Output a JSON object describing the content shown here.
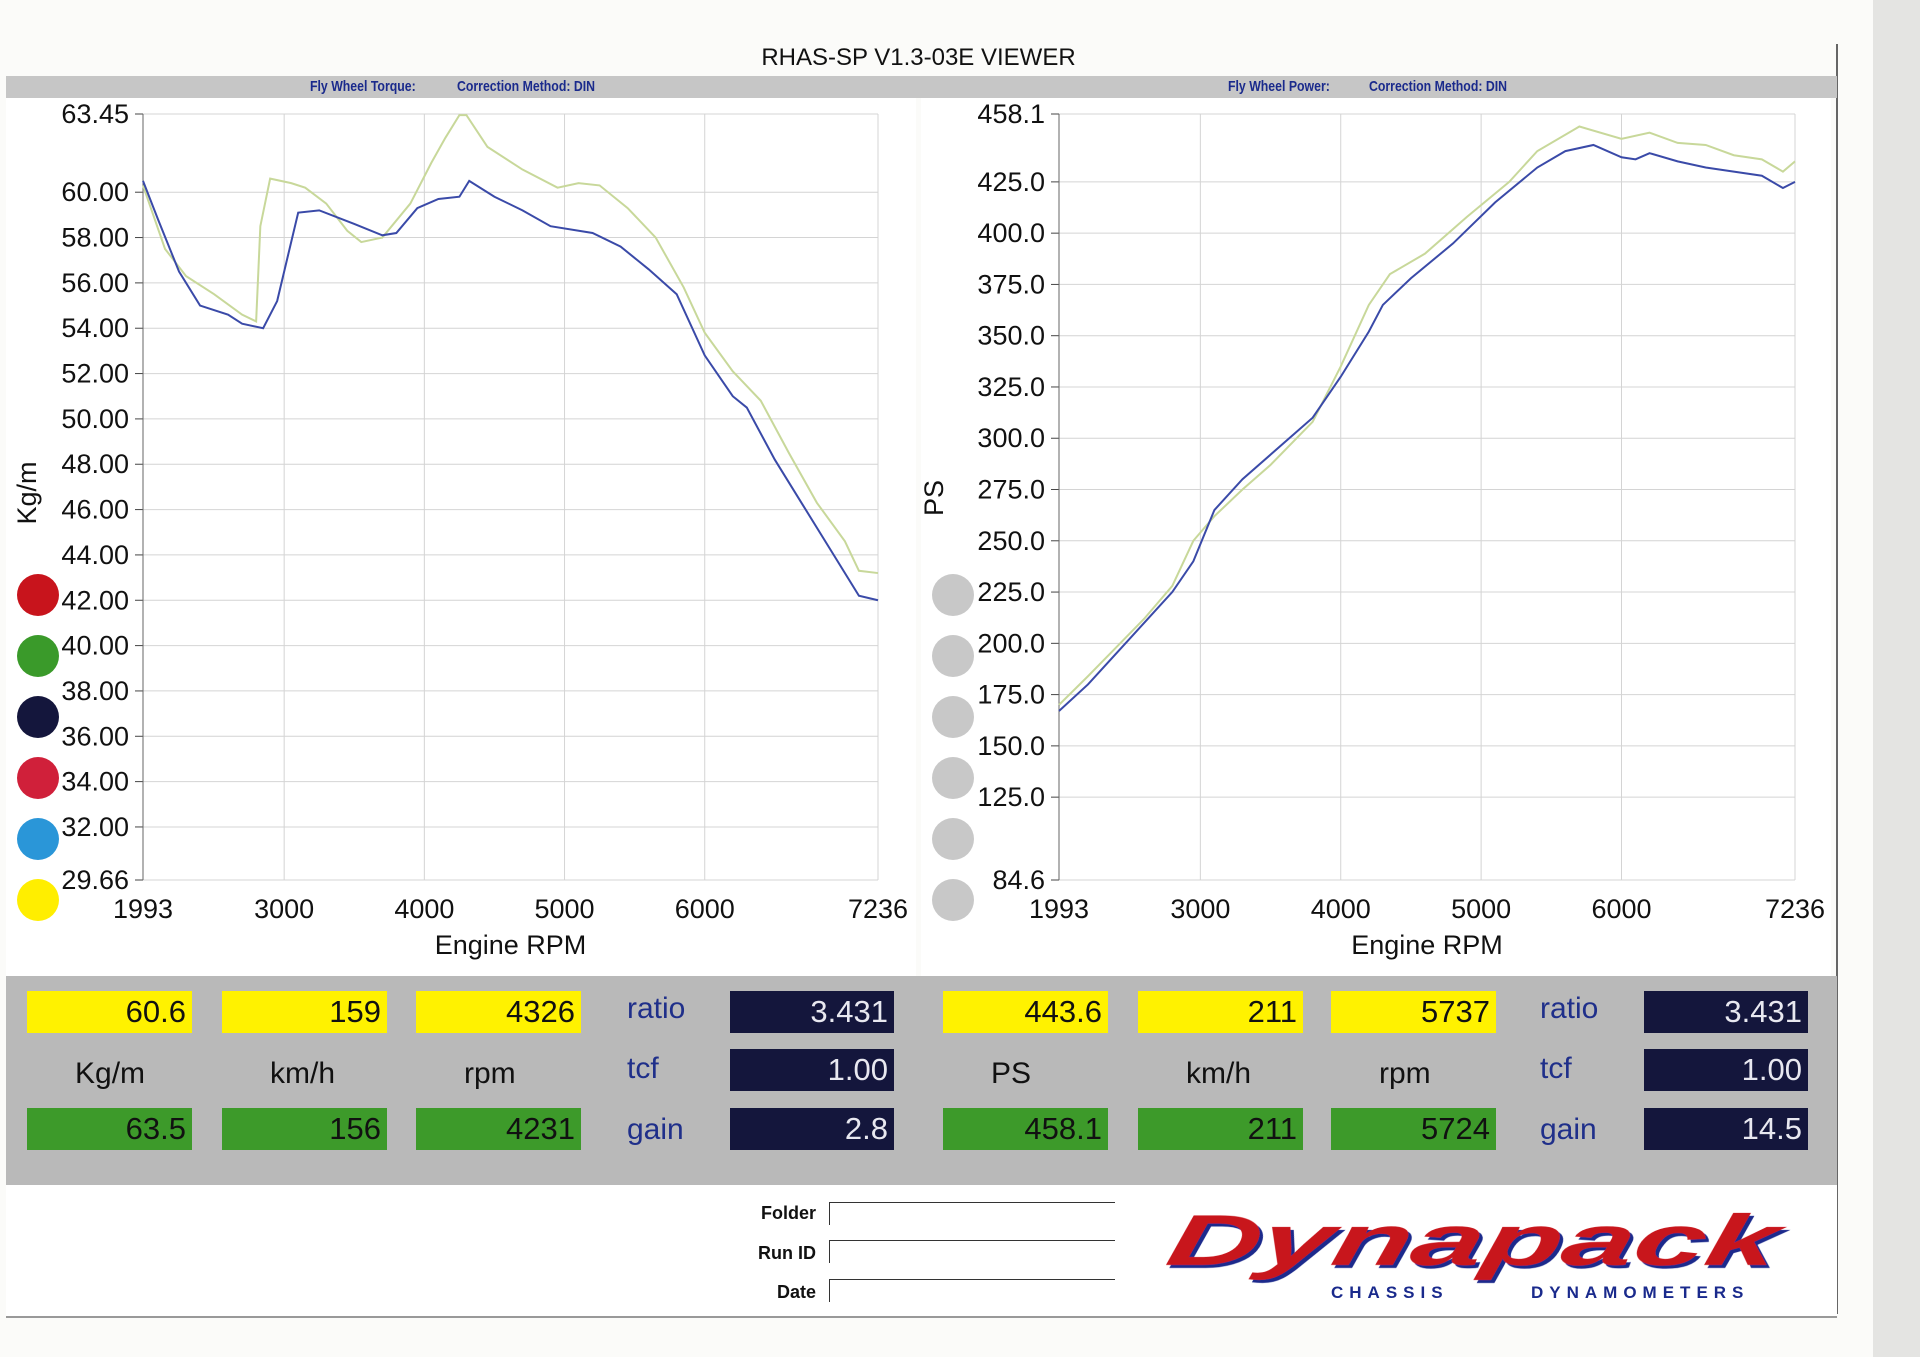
{
  "title": "RHAS-SP V1.3-03E VIEWER",
  "left_header": {
    "label": "Fly Wheel Torque:",
    "correction": "Correction Method: DIN"
  },
  "right_header": {
    "label": "Fly Wheel Power:",
    "correction": "Correction Method: DIN"
  },
  "left_dots": [
    "#c8141c",
    "#3a9a2a",
    "#14163c",
    "#d0203a",
    "#2a96d8",
    "#ffee00"
  ],
  "right_dots": [
    "#c8c8c8",
    "#c8c8c8",
    "#c8c8c8",
    "#c8c8c8",
    "#c8c8c8",
    "#c8c8c8"
  ],
  "chart_data": [
    {
      "type": "line",
      "xlabel": "Engine RPM",
      "ylabel": "Kg/m",
      "xlim": [
        1993,
        7236
      ],
      "ylim": [
        29.66,
        63.45
      ],
      "xticks": [
        1993,
        3000,
        4000,
        5000,
        6000,
        7236
      ],
      "yticks": [
        "63.45",
        "60.00",
        "58.00",
        "56.00",
        "54.00",
        "52.00",
        "50.00",
        "48.00",
        "46.00",
        "44.00",
        "42.00",
        "40.00",
        "38.00",
        "36.00",
        "34.00",
        "32.00",
        "29.66"
      ],
      "grid": true,
      "series": [
        {
          "color": "#3a4aa8",
          "x": [
            1993,
            2100,
            2250,
            2400,
            2600,
            2700,
            2850,
            2950,
            3100,
            3250,
            3500,
            3700,
            3800,
            3950,
            4100,
            4250,
            4320,
            4500,
            4700,
            4900,
            5200,
            5400,
            5600,
            5800,
            6000,
            6200,
            6300,
            6500,
            6700,
            6900,
            7100,
            7236
          ],
          "y": [
            60.5,
            58.8,
            56.5,
            55.0,
            54.6,
            54.2,
            54.0,
            55.2,
            59.1,
            59.2,
            58.6,
            58.1,
            58.2,
            59.3,
            59.7,
            59.8,
            60.5,
            59.8,
            59.2,
            58.5,
            58.2,
            57.6,
            56.6,
            55.5,
            52.8,
            51.0,
            50.5,
            48.2,
            46.2,
            44.2,
            42.2,
            42.0
          ]
        },
        {
          "color": "#c8d89a",
          "x": [
            1993,
            2150,
            2300,
            2500,
            2700,
            2800,
            2830,
            2900,
            3050,
            3150,
            3300,
            3450,
            3550,
            3700,
            3900,
            4050,
            4150,
            4250,
            4300,
            4450,
            4700,
            4950,
            5100,
            5250,
            5450,
            5650,
            5850,
            6000,
            6200,
            6400,
            6600,
            6800,
            7000,
            7100,
            7236
          ],
          "y": [
            60.3,
            57.5,
            56.3,
            55.5,
            54.6,
            54.3,
            58.5,
            60.6,
            60.4,
            60.2,
            59.5,
            58.3,
            57.8,
            58.0,
            59.5,
            61.3,
            62.4,
            63.4,
            63.4,
            62.0,
            61.0,
            60.2,
            60.4,
            60.3,
            59.3,
            58.0,
            55.8,
            53.8,
            52.1,
            50.8,
            48.5,
            46.3,
            44.6,
            43.3,
            43.2
          ]
        }
      ]
    },
    {
      "type": "line",
      "xlabel": "Engine RPM",
      "ylabel": "PS",
      "xlim": [
        1993,
        7236
      ],
      "ylim": [
        84.6,
        458.1
      ],
      "xticks": [
        1993,
        3000,
        4000,
        5000,
        6000,
        7236
      ],
      "yticks": [
        "458.1",
        "425.0",
        "400.0",
        "375.0",
        "350.0",
        "325.0",
        "300.0",
        "275.0",
        "250.0",
        "225.0",
        "200.0",
        "175.0",
        "150.0",
        "125.0",
        "84.6"
      ],
      "grid": true,
      "series": [
        {
          "color": "#3a4aa8",
          "x": [
            1993,
            2200,
            2400,
            2600,
            2800,
            2950,
            3100,
            3300,
            3500,
            3800,
            4000,
            4200,
            4300,
            4500,
            4800,
            5100,
            5400,
            5600,
            5800,
            6000,
            6100,
            6200,
            6400,
            6600,
            6800,
            7000,
            7150,
            7236
          ],
          "y": [
            167,
            180,
            195,
            210,
            225,
            240,
            265,
            280,
            292,
            310,
            330,
            352,
            365,
            378,
            395,
            415,
            432,
            440,
            443,
            437,
            436,
            439,
            435,
            432,
            430,
            428,
            422,
            425
          ]
        },
        {
          "color": "#c8d89a",
          "x": [
            1993,
            2200,
            2400,
            2600,
            2800,
            2950,
            3100,
            3300,
            3500,
            3800,
            4000,
            4200,
            4350,
            4600,
            4900,
            5200,
            5400,
            5700,
            6000,
            6200,
            6400,
            6600,
            6800,
            7000,
            7150,
            7236
          ],
          "y": [
            170,
            184,
            198,
            212,
            228,
            250,
            262,
            275,
            287,
            308,
            335,
            365,
            380,
            390,
            408,
            425,
            440,
            452,
            446,
            449,
            444,
            443,
            438,
            436,
            430,
            435
          ]
        }
      ]
    }
  ],
  "readout_left": {
    "yellow": [
      "60.6",
      "159",
      "4326"
    ],
    "units": [
      "Kg/m",
      "km/h",
      "rpm"
    ],
    "green": [
      "63.5",
      "156",
      "4231"
    ],
    "labels": [
      "ratio",
      "tcf",
      "gain"
    ],
    "values": [
      "3.431",
      "1.00",
      "2.8"
    ]
  },
  "readout_right": {
    "yellow": [
      "443.6",
      "211",
      "5737"
    ],
    "units": [
      "PS",
      "km/h",
      "rpm"
    ],
    "green": [
      "458.1",
      "211",
      "5724"
    ],
    "labels": [
      "ratio",
      "tcf",
      "gain"
    ],
    "values": [
      "3.431",
      "1.00",
      "14.5"
    ]
  },
  "footer": {
    "folder": "Folder",
    "run_id": "Run ID",
    "date": "Date",
    "folder_value": "",
    "run_id_value": "",
    "date_value": ""
  },
  "logo": {
    "name": "Dynapack",
    "tagline_left": "CHASSIS",
    "tagline_right": "DYNAMOMETERS",
    "colors": [
      "#c8141c",
      "#1a2a8c"
    ]
  }
}
